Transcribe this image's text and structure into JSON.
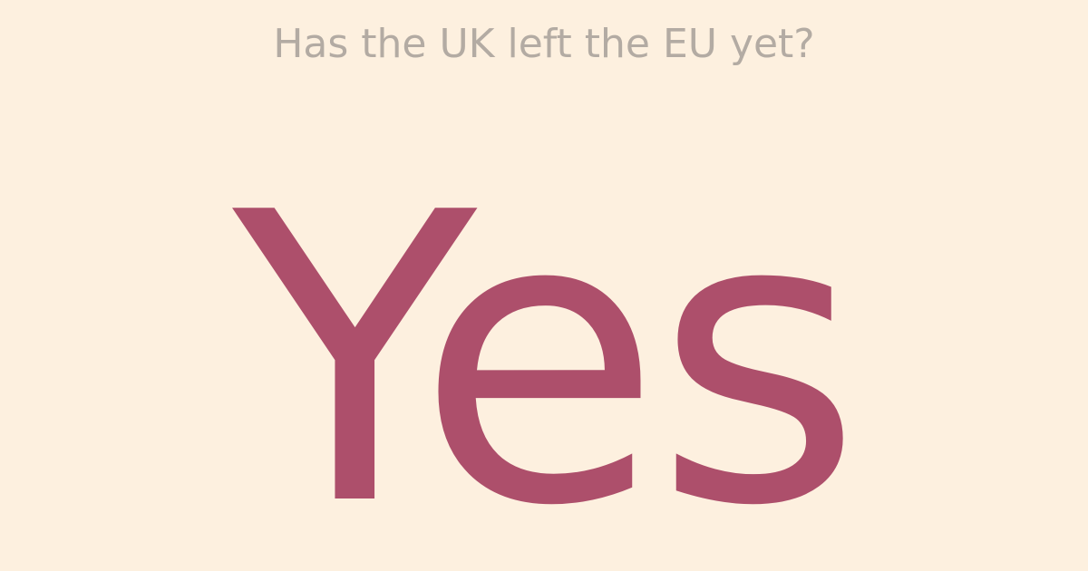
{
  "question": "Has the UK left the EU yet?",
  "answer": "Yes",
  "colors": {
    "background": "#fdf0df",
    "question_text": "#b3aba3",
    "answer_text": "#ad4f6b"
  }
}
